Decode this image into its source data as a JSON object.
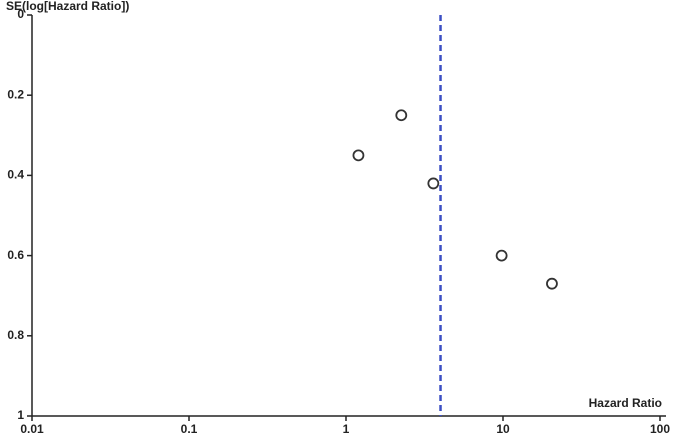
{
  "chart_data": {
    "type": "scatter",
    "y_label": "SE(log[Hazard Ratio])",
    "x_label": "Hazard Ratio",
    "x": [
      1.2,
      2.25,
      3.6,
      9.8,
      20.5
    ],
    "values": [
      0.35,
      0.25,
      0.42,
      0.6,
      0.67
    ],
    "color": "#333333",
    "xlim": [
      0.01,
      100
    ],
    "xticks": [
      0.01,
      0.1,
      1,
      10,
      100
    ],
    "log_x": true,
    "ylim": [
      0,
      1
    ],
    "yticks": [
      0,
      0.2,
      0.4,
      0.6,
      0.8,
      1
    ],
    "y_inverted": true,
    "reference_line": 4.0,
    "reference_color": "#3b4fc4",
    "grid": false
  }
}
